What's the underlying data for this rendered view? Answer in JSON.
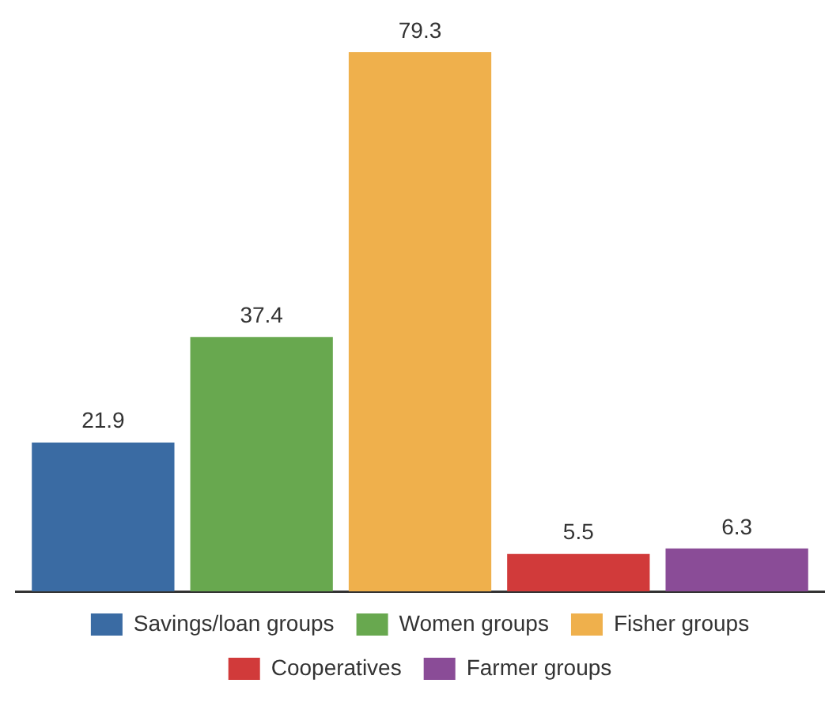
{
  "chart_data": {
    "type": "bar",
    "categories": [
      null
    ],
    "series": [
      {
        "name": "Savings/loan groups",
        "color": "#3a6ba3",
        "values": [
          21.9
        ]
      },
      {
        "name": "Women groups",
        "color": "#68a84f",
        "values": [
          37.4
        ]
      },
      {
        "name": "Fisher groups",
        "color": "#efb04c",
        "values": [
          79.3
        ]
      },
      {
        "name": "Cooperatives",
        "color": "#d13a3a",
        "values": [
          5.5
        ]
      },
      {
        "name": "Farmer groups",
        "color": "#8a4c97",
        "values": [
          6.3
        ]
      }
    ],
    "data_labels": true,
    "legend": "bottom",
    "tick_labels": false
  }
}
